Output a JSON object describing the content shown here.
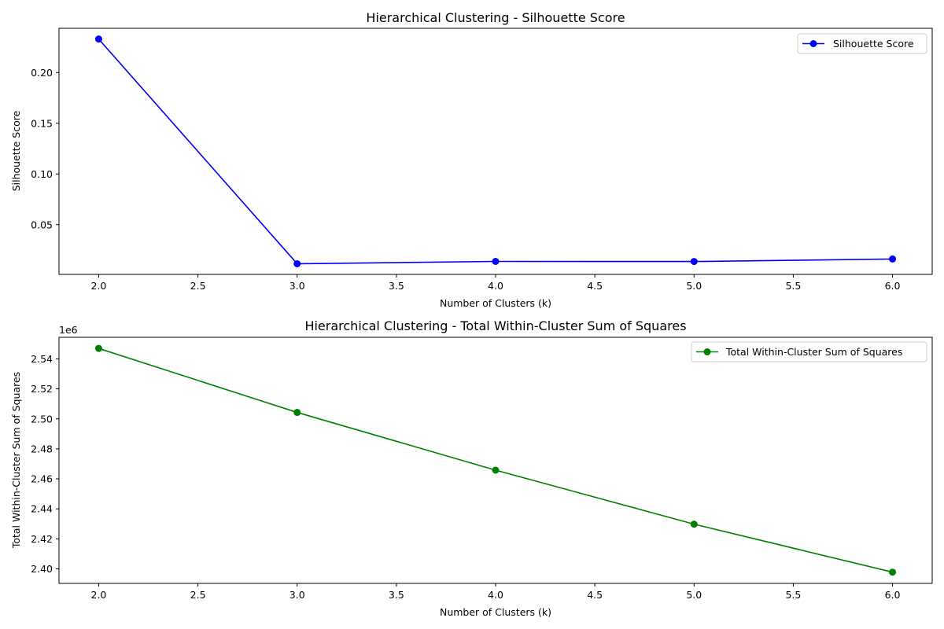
{
  "chart_data": [
    {
      "type": "line",
      "title": "Hierarchical Clustering - Silhouette Score",
      "xlabel": "Number of Clusters (k)",
      "ylabel": "Silhouette Score",
      "x": [
        2,
        3,
        4,
        5,
        6
      ],
      "xlim": [
        1.8,
        6.2
      ],
      "xticks": [
        2.0,
        2.5,
        3.0,
        3.5,
        4.0,
        4.5,
        5.0,
        5.5,
        6.0
      ],
      "xtick_labels": [
        "2.0",
        "2.5",
        "3.0",
        "3.5",
        "4.0",
        "4.5",
        "5.0",
        "5.5",
        "6.0"
      ],
      "ylim": [
        0.001,
        0.2436
      ],
      "yticks": [
        0.05,
        0.1,
        0.15,
        0.2
      ],
      "ytick_labels": [
        "0.05",
        "0.10",
        "0.15",
        "0.20"
      ],
      "offset_label": "",
      "grid": false,
      "legend_position": "top-right",
      "series": [
        {
          "name": "Silhouette Score",
          "color": "#0000ff",
          "marker": "circle",
          "values": [
            0.233,
            0.0115,
            0.0138,
            0.0137,
            0.0162
          ]
        }
      ]
    },
    {
      "type": "line",
      "title": "Hierarchical Clustering - Total Within-Cluster Sum of Squares",
      "xlabel": "Number of Clusters (k)",
      "ylabel": "Total Within-Cluster Sum of Squares",
      "x": [
        2,
        3,
        4,
        5,
        6
      ],
      "xlim": [
        1.8,
        6.2
      ],
      "xticks": [
        2.0,
        2.5,
        3.0,
        3.5,
        4.0,
        4.5,
        5.0,
        5.5,
        6.0
      ],
      "xtick_labels": [
        "2.0",
        "2.5",
        "3.0",
        "3.5",
        "4.0",
        "4.5",
        "5.0",
        "5.5",
        "6.0"
      ],
      "ylim": [
        2.3903,
        2.5544
      ],
      "yticks": [
        2.4,
        2.42,
        2.44,
        2.46,
        2.48,
        2.5,
        2.52,
        2.54
      ],
      "ytick_labels": [
        "2.40",
        "2.42",
        "2.44",
        "2.46",
        "2.48",
        "2.50",
        "2.52",
        "2.54"
      ],
      "offset_label": "1e6",
      "grid": false,
      "legend_position": "top-right",
      "series": [
        {
          "name": "Total Within-Cluster Sum of Squares",
          "color": "#008000",
          "marker": "circle",
          "values": [
            2.547,
            2.5043,
            2.4658,
            2.4298,
            2.3978
          ]
        }
      ]
    }
  ]
}
